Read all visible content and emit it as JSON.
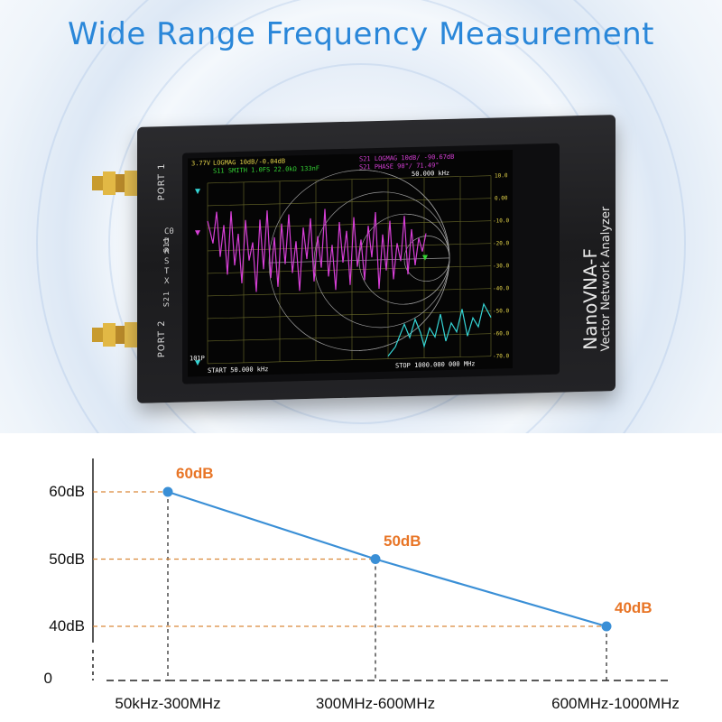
{
  "hero": {
    "title": "Wide Range Frequency Measurement",
    "device": {
      "port1_label": "PORT 1",
      "port2_label": "PORT 2",
      "s11_label": "S11",
      "s21_label": "S21",
      "menu_letters": "C0\nD\nR\nS\nT\nX",
      "brand": "NanoVNA-F",
      "brand_sub": "Vector Network Analyzer",
      "screen": {
        "line1_left": "LOGMAG 10dB/-0.04dB",
        "line1_right": "S21 LOGMAG 10dB/ -90.67dB",
        "line2_left": "S11 SMITH 1.0FS 22.0kΩ 133nF",
        "line2_right": "S21 PHASE 90°/ 71.49°",
        "marker_freq": "50.000 kHz",
        "start": "START 50.000 kHz",
        "stop": "STOP 1000.000 000 MHz",
        "points": "101P",
        "top_left": "3.77V",
        "y_labels": [
          "10.0",
          "0.00",
          "-10.0",
          "-20.0",
          "-30.0",
          "-40.0",
          "-50.0",
          "-60.0",
          "-70.0"
        ]
      }
    }
  },
  "colors": {
    "title_blue": "#2a87d9",
    "line_blue": "#3a8fd6",
    "label_orange": "#e87526",
    "dash_orange": "#d9893a"
  },
  "chart_data": {
    "type": "line",
    "categories": [
      "50kHz-300MHz",
      "300MHz-600MHz",
      "600MHz-1000MHz"
    ],
    "values": [
      60,
      50,
      40
    ],
    "data_labels": [
      "60dB",
      "50dB",
      "40dB"
    ],
    "y_ticks": [
      "60dB",
      "50dB",
      "40dB",
      "0"
    ],
    "y_tick_values": [
      60,
      50,
      40,
      0
    ],
    "ylim": [
      0,
      60
    ],
    "grid": false,
    "dashed_guides": true,
    "y_axis_break": true
  }
}
